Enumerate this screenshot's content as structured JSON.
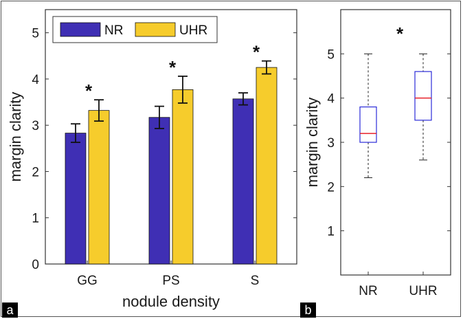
{
  "chart_data": [
    {
      "panel": "a",
      "type": "bar",
      "xlabel": "nodule density",
      "ylabel": "margin clarity",
      "ylim": [
        0,
        5.5
      ],
      "yticks": [
        0,
        1,
        2,
        3,
        4,
        5
      ],
      "categories": [
        "GG",
        "PS",
        "S"
      ],
      "series": [
        {
          "name": "NR",
          "color": "#3f2fb4",
          "values": [
            2.83,
            3.17,
            3.57
          ],
          "err": [
            0.2,
            0.24,
            0.13
          ]
        },
        {
          "name": "UHR",
          "color": "#f6cc2c",
          "values": [
            3.32,
            3.77,
            4.25
          ],
          "err": [
            0.23,
            0.29,
            0.14
          ]
        }
      ],
      "significance": [
        "*",
        "*",
        "*"
      ]
    },
    {
      "panel": "b",
      "type": "box",
      "xlabel": "",
      "ylabel": "margin clarity",
      "ylim": [
        0,
        6
      ],
      "yticks": [
        1,
        2,
        3,
        4,
        5
      ],
      "categories": [
        "NR",
        "UHR"
      ],
      "boxes": [
        {
          "name": "NR",
          "min": 2.2,
          "q1": 3.0,
          "median": 3.2,
          "q3": 3.8,
          "max": 5.0
        },
        {
          "name": "UHR",
          "min": 2.6,
          "q1": 3.5,
          "median": 4.0,
          "q3": 4.6,
          "max": 5.0
        }
      ],
      "box_color": "#2a2ad8",
      "median_color": "#e8202a",
      "significance": "*"
    }
  ]
}
